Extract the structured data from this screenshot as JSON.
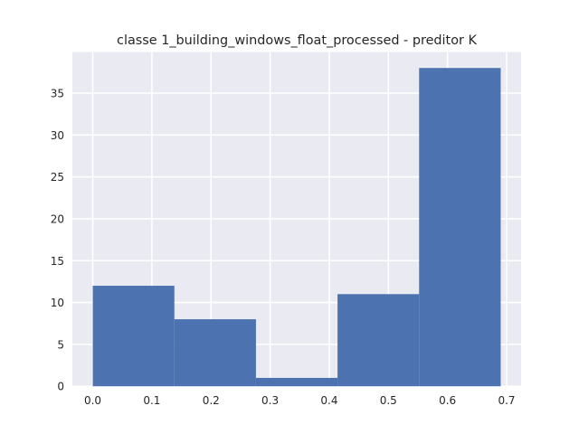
{
  "chart_data": {
    "type": "bar",
    "subtype": "histogram",
    "title": "classe 1_building_windows_float_processed - preditor K",
    "xlabel": "",
    "ylabel": "",
    "bins": [
      {
        "start": 0.0,
        "end": 0.138,
        "value": 12
      },
      {
        "start": 0.138,
        "end": 0.276,
        "value": 8
      },
      {
        "start": 0.276,
        "end": 0.414,
        "value": 1
      },
      {
        "start": 0.414,
        "end": 0.552,
        "value": 11
      },
      {
        "start": 0.552,
        "end": 0.69,
        "value": 38
      }
    ],
    "xlim": [
      -0.0345,
      0.7245
    ],
    "ylim": [
      0,
      39.9
    ],
    "xticks": [
      0.0,
      0.1,
      0.2,
      0.3,
      0.4,
      0.5,
      0.6,
      0.7
    ],
    "xtick_labels": [
      "0.0",
      "0.1",
      "0.2",
      "0.3",
      "0.4",
      "0.5",
      "0.6",
      "0.7"
    ],
    "yticks": [
      0,
      5,
      10,
      15,
      20,
      25,
      30,
      35
    ],
    "ytick_labels": [
      "0",
      "5",
      "10",
      "15",
      "20",
      "25",
      "30",
      "35"
    ],
    "grid": true,
    "colors": {
      "bar": "#4c72b0",
      "plot_background": "#eaeaf2",
      "grid": "#ffffff",
      "text": "#262626"
    }
  }
}
